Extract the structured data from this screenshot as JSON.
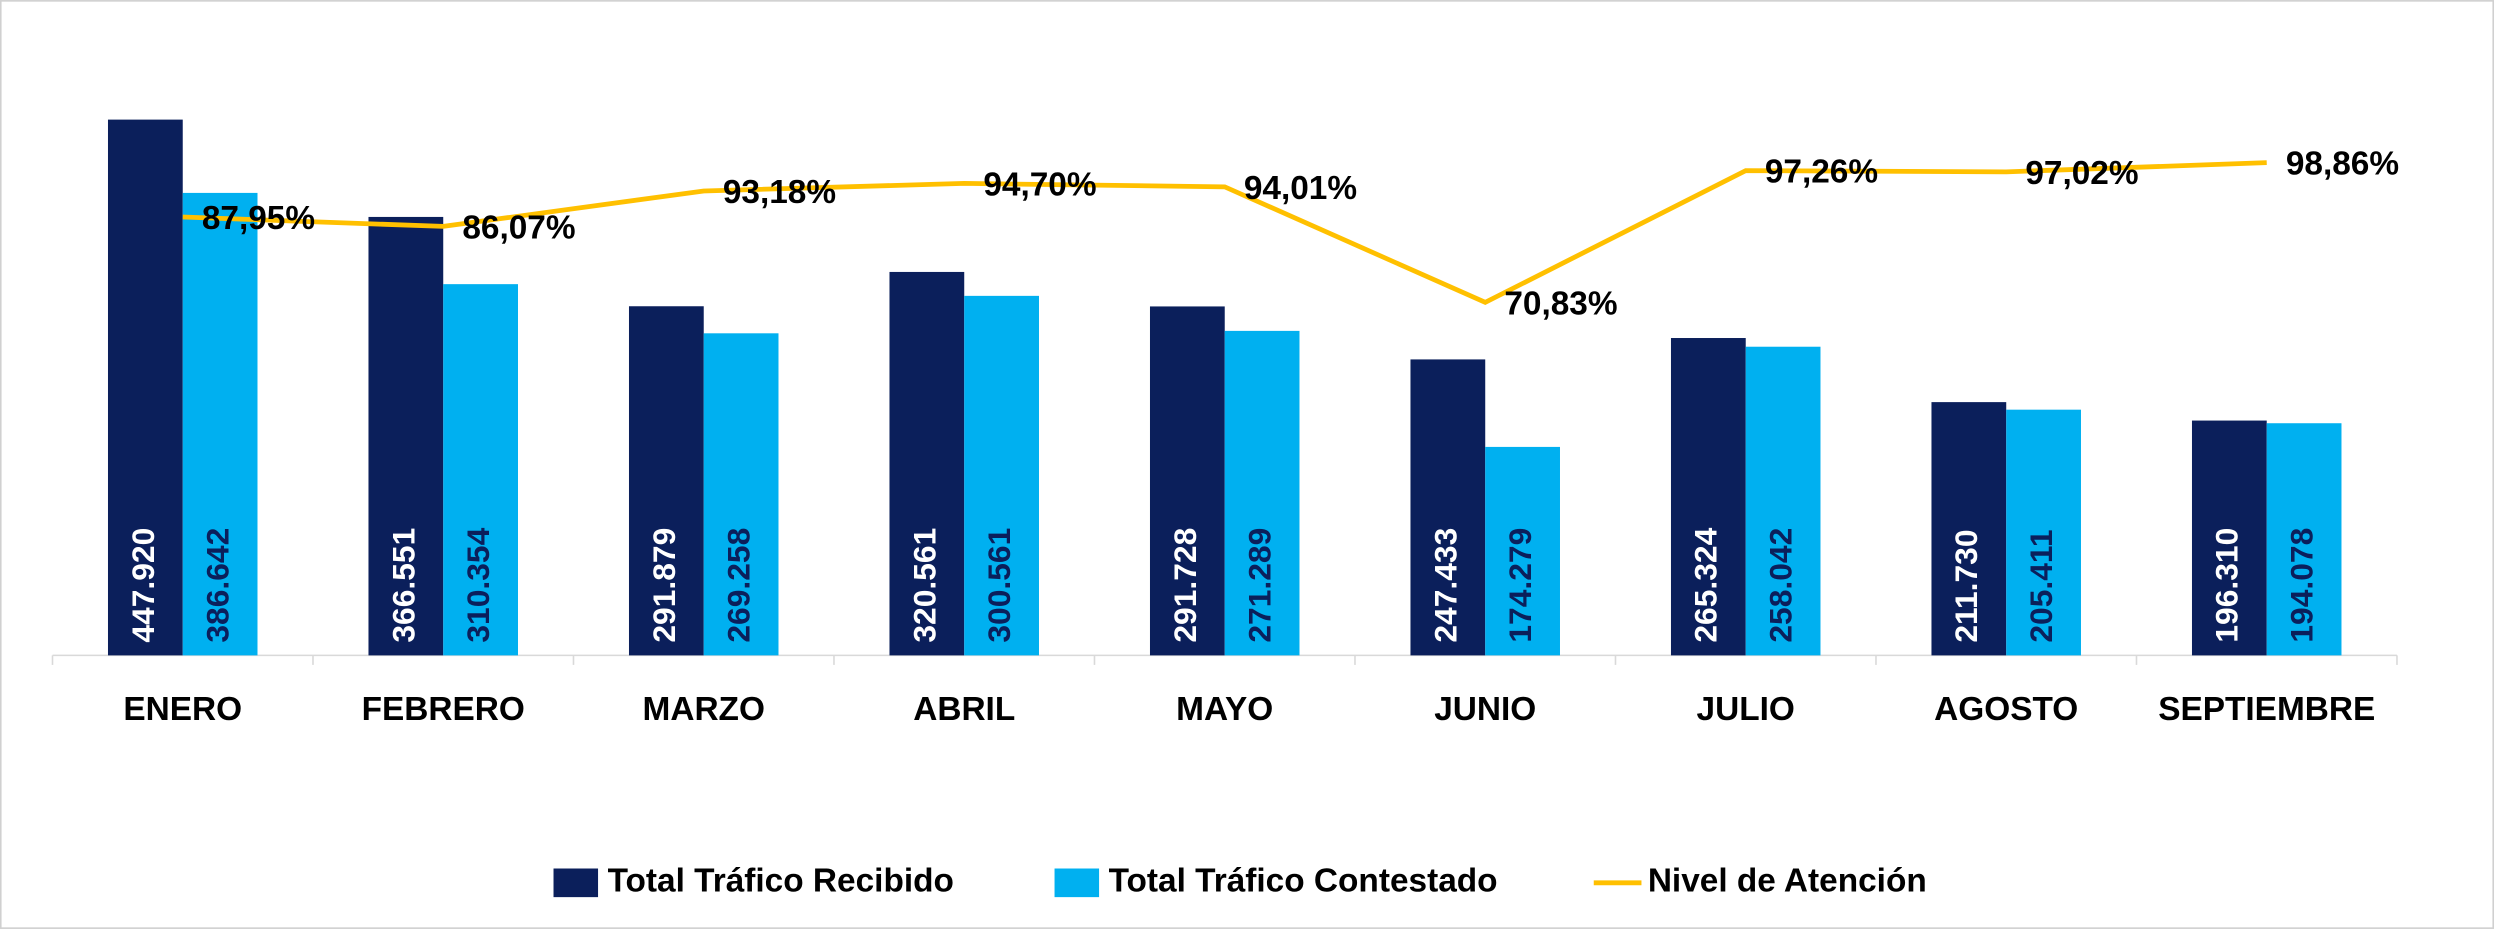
{
  "chart_data": {
    "type": "bar",
    "categories": [
      "ENERO",
      "FEBRERO",
      "MARZO",
      "ABRIL",
      "MAYO",
      "JUNIO",
      "JULIO",
      "AGOSTO",
      "SEPTIEMBRE"
    ],
    "series": [
      {
        "name": "Total Tráfico Recibido",
        "type": "bar",
        "color": "#0b1f5b",
        "values": [
          447920,
          366551,
          291879,
          320561,
          291728,
          247433,
          265324,
          211730,
          196310
        ],
        "value_labels": [
          "447.920",
          "366.551",
          "291.879",
          "320.561",
          "291.728",
          "247.433",
          "265.324",
          "211.730",
          "196.310"
        ]
      },
      {
        "name": "Total Tráfico Contestado",
        "type": "bar",
        "color": "#00b0f0",
        "values": [
          386642,
          310354,
          269258,
          300561,
          271289,
          174279,
          258042,
          205411,
          194078
        ],
        "value_labels": [
          "386.642",
          "310.354",
          "269.258",
          "300.561",
          "271.289",
          "174.279",
          "258.042",
          "205.411",
          "194.078"
        ]
      },
      {
        "name": "Nivel de Atención",
        "type": "line",
        "axis": "y2",
        "color": "#ffc000",
        "values": [
          87.95,
          86.07,
          93.18,
          94.7,
          94.01,
          70.83,
          97.26,
          97.02,
          98.86
        ],
        "value_labels": [
          "87,95%",
          "86,07%",
          "93,18%",
          "94,70%",
          "94,01%",
          "70,83%",
          "97,26%",
          "97,02%",
          "98,86%"
        ]
      }
    ],
    "ylim": [
      0,
      500000
    ],
    "y2lim": [
      0,
      120
    ],
    "legend": "bottom"
  }
}
